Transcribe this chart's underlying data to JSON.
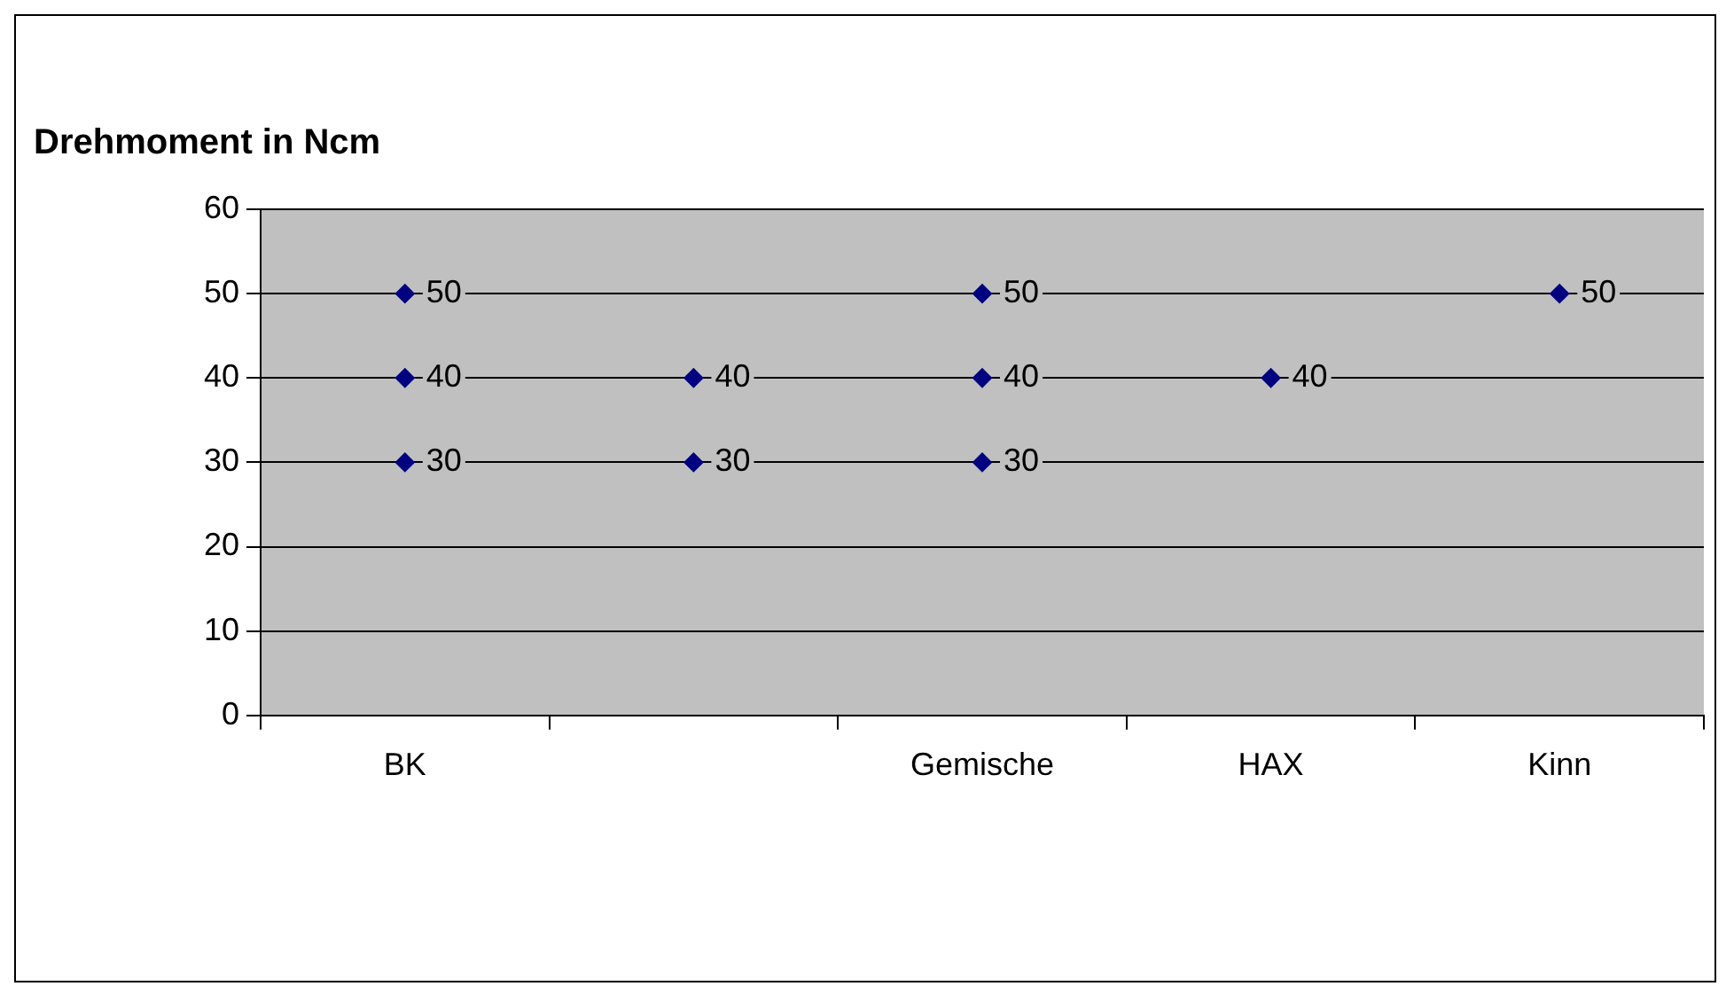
{
  "chart_data": {
    "type": "scatter",
    "title": "Drehmoment in Ncm",
    "categories": [
      "BK",
      null,
      "Gemische",
      "HAX",
      "Kinn"
    ],
    "series": [
      {
        "color": "#000080",
        "values": [
          30,
          30,
          30,
          null,
          null
        ]
      },
      {
        "color": "#000080",
        "values": [
          40,
          40,
          40,
          40,
          null
        ]
      },
      {
        "color": "#000080",
        "values": [
          50,
          null,
          50,
          null,
          50
        ]
      }
    ],
    "ylim": [
      0,
      60
    ],
    "yticks": [
      0,
      10,
      20,
      30,
      40,
      50,
      60
    ],
    "grid": "y",
    "legend": false,
    "marker": "diamond",
    "data_labels": true
  }
}
